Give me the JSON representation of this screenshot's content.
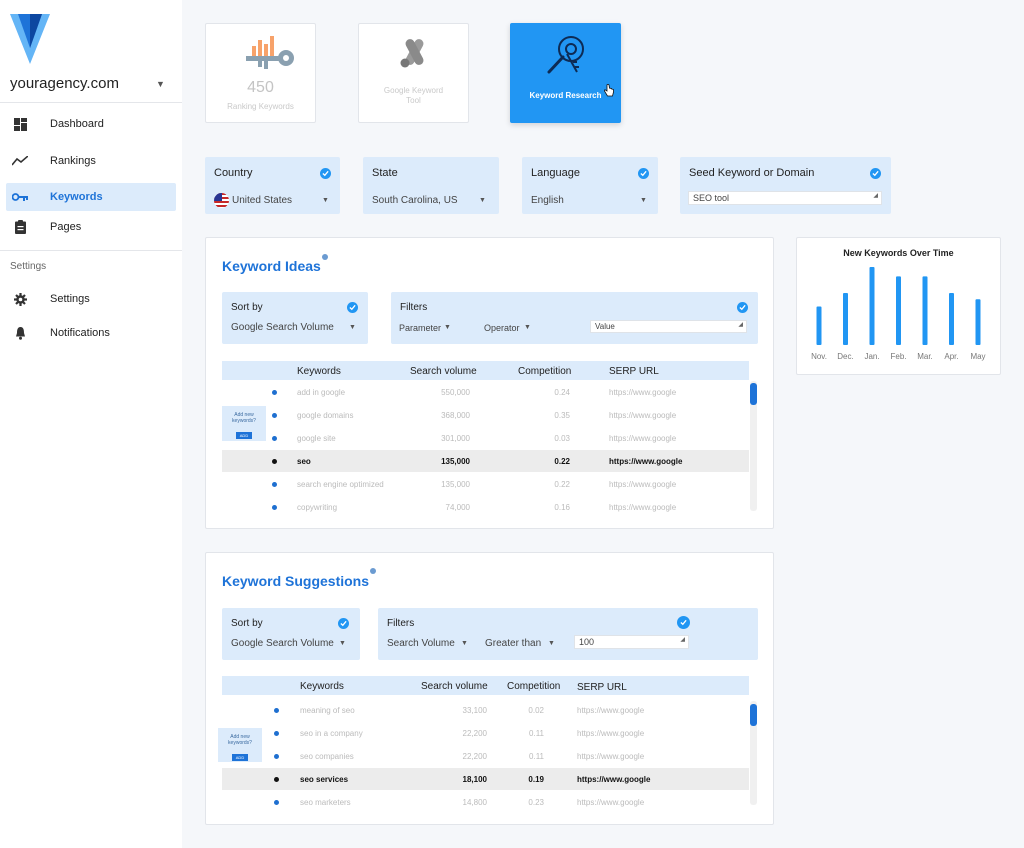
{
  "sidebar": {
    "agency": "youragency.com",
    "items": [
      {
        "label": "Dashboard",
        "icon": "dashboard-icon"
      },
      {
        "label": "Rankings",
        "icon": "trending-icon"
      },
      {
        "label": "Keywords",
        "icon": "key-icon"
      },
      {
        "label": "Pages",
        "icon": "clipboard-icon"
      }
    ],
    "settings_header": "Settings",
    "settings_items": [
      {
        "label": "Settings",
        "icon": "gear-icon"
      },
      {
        "label": "Notifications",
        "icon": "bell-icon"
      }
    ]
  },
  "top_cards": [
    {
      "number": "450",
      "label": "Ranking Keywords"
    },
    {
      "label": "Google Keyword Tool"
    },
    {
      "label": "Keyword Research"
    }
  ],
  "filters": {
    "country": {
      "title": "Country",
      "value": "United States"
    },
    "state": {
      "title": "State",
      "value": "South Carolina, US"
    },
    "language": {
      "title": "Language",
      "value": "English"
    },
    "seed": {
      "title": "Seed Keyword or Domain",
      "value": "SEO tool"
    }
  },
  "keyword_ideas": {
    "title": "Keyword Ideas",
    "sort_title": "Sort by",
    "sort_value": "Google Search Volume",
    "filters_title": "Filters",
    "param": "Parameter",
    "operator": "Operator",
    "value_placeholder": "Value",
    "add_new": "Add new keywords?",
    "add_btn": "ADD",
    "columns": [
      "Keywords",
      "Search volume",
      "Competition",
      "SERP URL"
    ],
    "rows": [
      {
        "kw": "add in google",
        "vol": "550,000",
        "comp": "0.24",
        "url": "https://www.google"
      },
      {
        "kw": "google domains",
        "vol": "368,000",
        "comp": "0.35",
        "url": "https://www.google"
      },
      {
        "kw": "google site",
        "vol": "301,000",
        "comp": "0.03",
        "url": "https://www.google"
      },
      {
        "kw": "seo",
        "vol": "135,000",
        "comp": "0.22",
        "url": "https://www.google"
      },
      {
        "kw": "search engine optimized",
        "vol": "135,000",
        "comp": "0.22",
        "url": "https://www.google"
      },
      {
        "kw": "copywriting",
        "vol": "74,000",
        "comp": "0.16",
        "url": "https://www.google"
      }
    ]
  },
  "keyword_suggestions": {
    "title": "Keyword Suggestions",
    "sort_title": "Sort by",
    "sort_value": "Google Search Volume",
    "filters_title": "Filters",
    "param": "Search Volume",
    "operator": "Greater than",
    "value": "100",
    "add_new": "Add new keywords?",
    "add_btn": "ADD",
    "columns": [
      "Keywords",
      "Search volume",
      "Competition",
      "SERP URL"
    ],
    "rows": [
      {
        "kw": "meaning of seo",
        "vol": "33,100",
        "comp": "0.02",
        "url": "https://www.google"
      },
      {
        "kw": "seo in a company",
        "vol": "22,200",
        "comp": "0.11",
        "url": "https://www.google"
      },
      {
        "kw": "seo companies",
        "vol": "22,200",
        "comp": "0.11",
        "url": "https://www.google"
      },
      {
        "kw": "seo services",
        "vol": "18,100",
        "comp": "0.19",
        "url": "https://www.google"
      },
      {
        "kw": "seo marketers",
        "vol": "14,800",
        "comp": "0.23",
        "url": "https://www.google"
      }
    ]
  },
  "chart_data": {
    "type": "bar",
    "title": "New Keywords Over Time",
    "categories": [
      "Nov.",
      "Dec.",
      "Jan.",
      "Feb.",
      "Mar.",
      "Apr.",
      "May"
    ],
    "values": [
      37,
      50,
      75,
      66,
      66,
      50,
      44
    ],
    "color": "#2196f3"
  },
  "colors": {
    "accent": "#2196f3",
    "light": "#dcebfb",
    "title": "#1e73d8"
  }
}
